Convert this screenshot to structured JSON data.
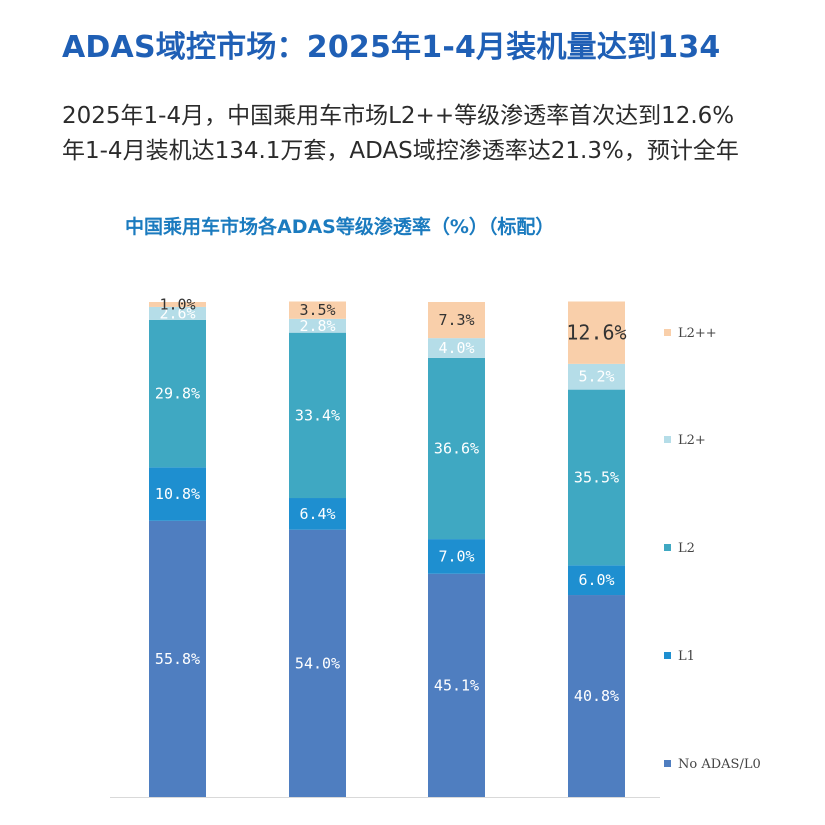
{
  "header": {
    "title": "ADAS域控市场：2025年1-4月装机量达到134",
    "body_line_1": "2025年1-4月，中国乘用车市场L2++等级渗透率首次达到12.6%",
    "body_line_2": "年1-4月装机达134.1万套，ADAS域控渗透率达21.3%，预计全年"
  },
  "chart_data": {
    "type": "bar",
    "stacked": true,
    "title": "中国乘用车市场各ADAS等级渗透率（%）（标配）",
    "xlabel": "",
    "ylabel": "",
    "ylim": [
      0,
      100
    ],
    "grid": false,
    "legend": "right",
    "categories": [
      "",
      "",
      "",
      ""
    ],
    "series": [
      {
        "name": "No ADAS/L0",
        "color": "#4f7ec0",
        "values": [
          55.8,
          54.0,
          45.1,
          40.8
        ],
        "labels": [
          "55.8%",
          "54.0%",
          "45.1%",
          "40.8%"
        ]
      },
      {
        "name": "L1",
        "color": "#1e8fd0",
        "values": [
          10.8,
          6.4,
          7.0,
          6.0
        ],
        "labels": [
          "10.8%",
          "6.4%",
          "7.0%",
          "6.0%"
        ]
      },
      {
        "name": "L2",
        "color": "#3fa8c2",
        "values": [
          29.8,
          33.4,
          36.6,
          35.5
        ],
        "labels": [
          "29.8%",
          "33.4%",
          "36.6%",
          "35.5%"
        ]
      },
      {
        "name": "L2+",
        "color": "#b5dde8",
        "values": [
          2.6,
          2.8,
          4.0,
          5.2
        ],
        "labels": [
          "2.6%",
          "2.8%",
          "4.0%",
          "5.2%"
        ]
      },
      {
        "name": "L2++",
        "color": "#f9cfaa",
        "values": [
          1.0,
          3.5,
          7.3,
          12.6
        ],
        "labels": [
          "1.0%",
          "3.5%",
          "7.3%",
          "12.6%"
        ]
      }
    ]
  }
}
